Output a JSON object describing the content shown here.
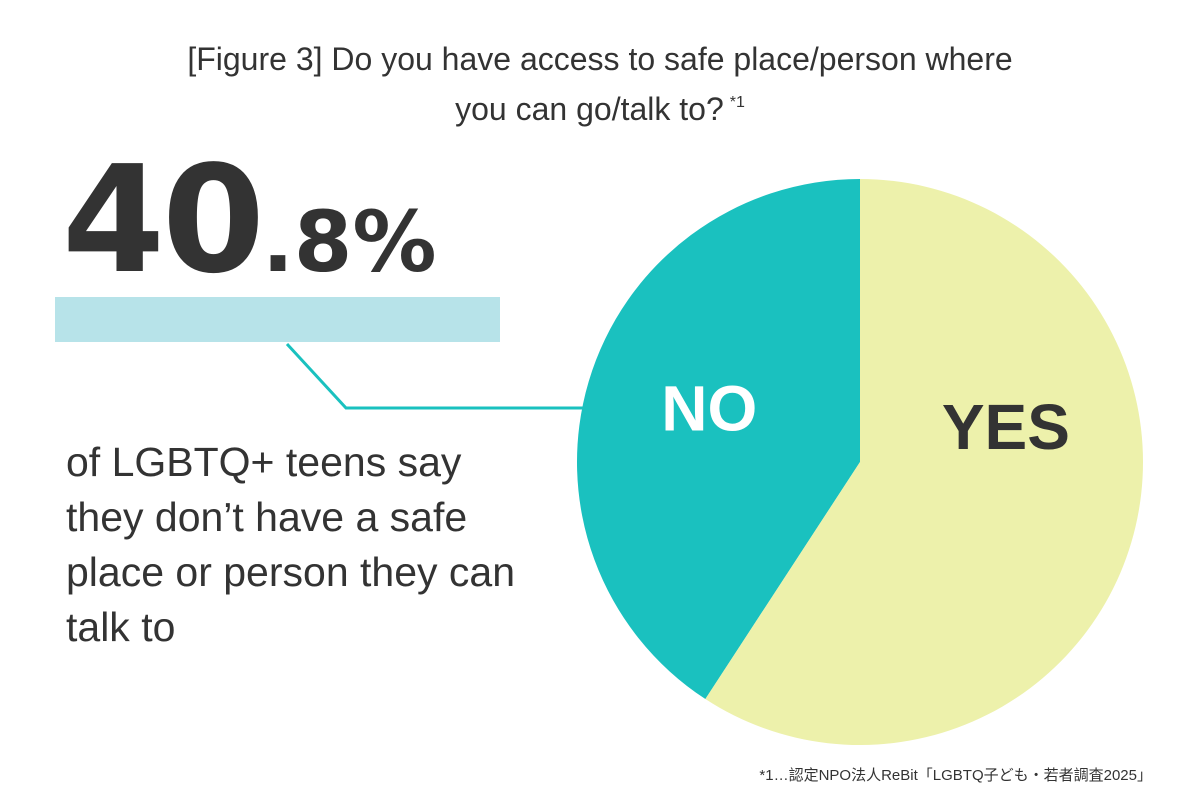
{
  "title": {
    "line1": "[Figure 3] Do you have access to safe place/person where",
    "line2": "you can go/talk to?",
    "note_mark": "*1"
  },
  "headline": {
    "integer_part": "40",
    "decimal_part": ".8%"
  },
  "statement": "of LGBTQ+ teens say they don’t have a safe place or person they can talk to",
  "footnote": "*1…認定NPO法人ReBit「LGBTQ子ども・若者調査2025」",
  "colors": {
    "no": "#1ac1bf",
    "yes": "#edf1ab",
    "highlight": "#b7e3e9",
    "text": "#333333",
    "no_label": "#ffffff"
  },
  "chart_data": {
    "type": "pie",
    "slices": [
      {
        "label": "NO",
        "value": 40.8,
        "color": "#1ac1bf"
      },
      {
        "label": "YES",
        "value": 59.2,
        "color": "#edf1ab"
      }
    ],
    "start": "top",
    "direction": "counterclockwise-first-slice"
  }
}
